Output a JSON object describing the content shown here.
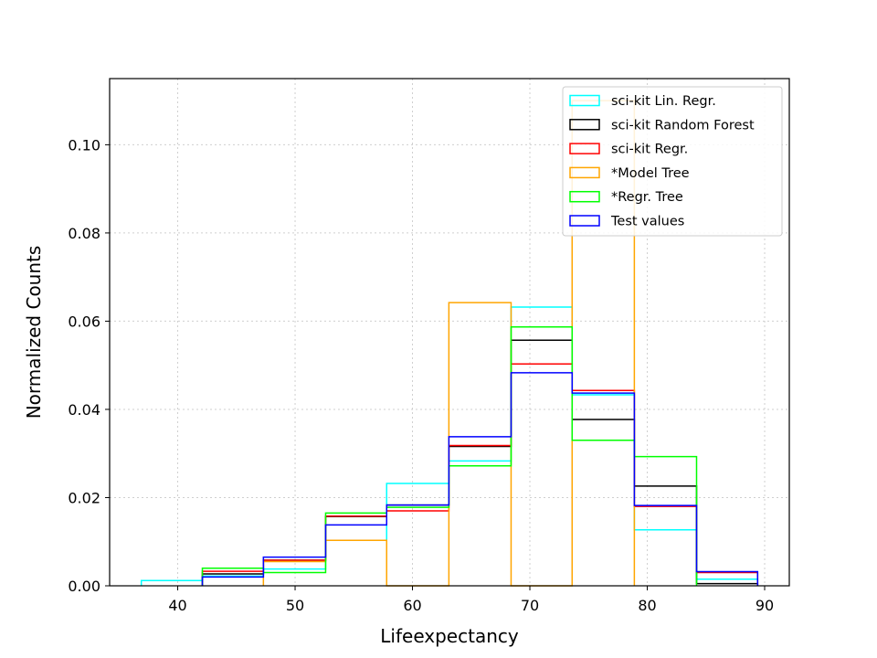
{
  "chart_data": {
    "type": "histogram-step",
    "xlabel": "Lifeexpectancy",
    "ylabel": "Normalized Counts",
    "xlim": [
      34.2,
      92.1
    ],
    "ylim": [
      0,
      0.115
    ],
    "xticks": [
      40,
      50,
      60,
      70,
      80,
      90
    ],
    "yticks": [
      0.0,
      0.02,
      0.04,
      0.06,
      0.08,
      0.1
    ],
    "ytick_labels": [
      "0.00",
      "0.02",
      "0.04",
      "0.06",
      "0.08",
      "0.10"
    ],
    "grid": true,
    "legend_position": "top-right",
    "series": [
      {
        "name": "sci-kit Lin. Regr.",
        "color": "#00ffff",
        "edges": [
          36.9,
          42.1,
          47.3,
          52.6,
          57.8,
          63.1,
          68.4,
          73.6,
          78.9,
          84.2,
          89.4
        ],
        "values": [
          0.0012,
          0.0022,
          0.0038,
          0.0103,
          0.0232,
          0.0283,
          0.0632,
          0.0433,
          0.0127,
          0.0015
        ]
      },
      {
        "name": "sci-kit Random Forest",
        "color": "#000000",
        "edges": [
          42.1,
          47.3,
          52.6,
          57.8,
          63.1,
          68.4,
          73.6,
          78.9,
          84.2,
          89.4
        ],
        "values": [
          0.0027,
          0.0058,
          0.0157,
          0.0183,
          0.0316,
          0.0557,
          0.0377,
          0.0226,
          0.0005
        ]
      },
      {
        "name": "sci-kit Regr.",
        "color": "#ff0000",
        "edges": [
          42.1,
          47.3,
          52.6,
          57.8,
          63.1,
          68.4,
          73.6,
          78.9,
          84.2,
          89.4
        ],
        "values": [
          0.0033,
          0.0058,
          0.0158,
          0.017,
          0.0318,
          0.0503,
          0.0443,
          0.018,
          0.003
        ]
      },
      {
        "name": "*Model Tree",
        "color": "#ffa500",
        "edges": [
          47.3,
          52.6,
          57.8,
          63.1,
          68.4,
          73.6,
          78.9
        ],
        "values": [
          0.0055,
          0.0103,
          0.0,
          0.0642,
          0.0,
          0.11
        ]
      },
      {
        "name": "*Regr. Tree",
        "color": "#00ff00",
        "edges": [
          42.1,
          47.3,
          52.6,
          57.8,
          63.1,
          68.4,
          73.6,
          78.9,
          84.2
        ],
        "values": [
          0.004,
          0.003,
          0.0165,
          0.0178,
          0.0272,
          0.0587,
          0.033,
          0.0293
        ]
      },
      {
        "name": "Test values",
        "color": "#0000ff",
        "edges": [
          42.1,
          47.3,
          52.6,
          57.8,
          63.1,
          68.4,
          73.6,
          78.9,
          84.2,
          89.4
        ],
        "values": [
          0.002,
          0.0065,
          0.0138,
          0.0183,
          0.0338,
          0.0483,
          0.0437,
          0.0182,
          0.0032
        ]
      }
    ]
  }
}
